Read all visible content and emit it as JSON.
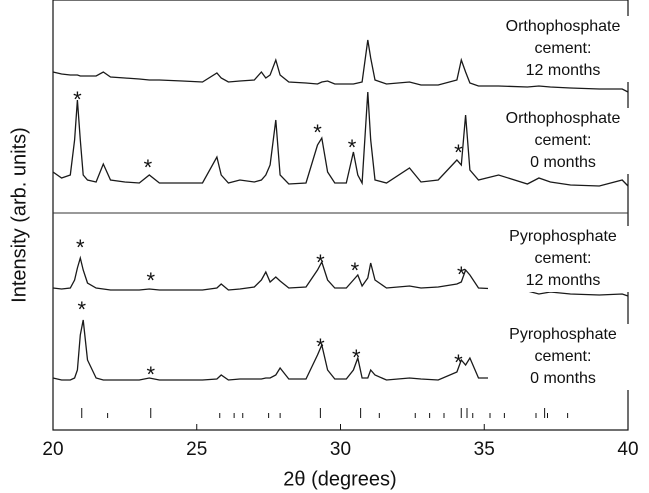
{
  "chart_data": {
    "type": "line",
    "xlabel": "2θ (degrees)",
    "ylabel": "Intensity (arb. units)",
    "xlim": [
      20,
      40
    ],
    "xticks": [
      20,
      25,
      30,
      35,
      40
    ],
    "ylim": [
      0,
      4.3
    ],
    "x": [
      20,
      20.3,
      20.6,
      20.75,
      20.85,
      20.95,
      21.05,
      21.2,
      21.5,
      21.75,
      22,
      22.5,
      23,
      23.35,
      23.7,
      24.5,
      25.2,
      25.7,
      25.85,
      26.1,
      26.5,
      27,
      27.25,
      27.4,
      27.55,
      27.75,
      27.9,
      28.2,
      28.8,
      29.2,
      29.35,
      29.55,
      29.8,
      30.2,
      30.45,
      30.6,
      30.75,
      30.95,
      31.05,
      31.2,
      31.6,
      32.4,
      32.8,
      33.4,
      34.05,
      34.2,
      34.35,
      34.5,
      34.8,
      35.5,
      36.5,
      36.9,
      37.3,
      38,
      39,
      39.8,
      40
    ],
    "series": [
      {
        "name": "Orthophosphate\ncement:\n12 months",
        "color": "#1a1a1a",
        "values": [
          3.58,
          3.56,
          3.55,
          3.55,
          3.55,
          3.54,
          3.54,
          3.54,
          3.54,
          3.58,
          3.53,
          3.52,
          3.51,
          3.5,
          3.5,
          3.49,
          3.48,
          3.57,
          3.52,
          3.48,
          3.49,
          3.5,
          3.58,
          3.52,
          3.55,
          3.7,
          3.55,
          3.48,
          3.47,
          3.46,
          3.48,
          3.49,
          3.46,
          3.46,
          3.46,
          3.47,
          3.48,
          3.9,
          3.72,
          3.5,
          3.46,
          3.48,
          3.45,
          3.45,
          3.5,
          3.7,
          3.58,
          3.47,
          3.44,
          3.44,
          3.43,
          3.44,
          3.43,
          3.42,
          3.41,
          3.41,
          3.38
        ]
      },
      {
        "name": "Orthophosphate\ncement:\n0 months",
        "color": "#1a1a1a",
        "values": [
          2.58,
          2.52,
          2.55,
          2.9,
          3.3,
          2.9,
          2.55,
          2.5,
          2.48,
          2.66,
          2.5,
          2.48,
          2.47,
          2.55,
          2.47,
          2.47,
          2.47,
          2.73,
          2.55,
          2.47,
          2.5,
          2.48,
          2.5,
          2.55,
          2.65,
          3.1,
          2.55,
          2.46,
          2.47,
          2.85,
          2.92,
          2.58,
          2.47,
          2.47,
          2.78,
          2.55,
          2.47,
          3.38,
          2.9,
          2.5,
          2.47,
          2.62,
          2.48,
          2.5,
          2.7,
          2.65,
          3.15,
          2.6,
          2.5,
          2.55,
          2.46,
          2.52,
          2.48,
          2.45,
          2.44,
          2.5,
          2.44
        ]
      },
      {
        "name": "Pyrophosphate\ncement:\n12 months",
        "color": "#1a1a1a",
        "values": [
          1.42,
          1.41,
          1.42,
          1.5,
          1.62,
          1.72,
          1.6,
          1.47,
          1.42,
          1.41,
          1.4,
          1.4,
          1.4,
          1.41,
          1.4,
          1.4,
          1.4,
          1.42,
          1.46,
          1.4,
          1.41,
          1.43,
          1.5,
          1.58,
          1.48,
          1.53,
          1.49,
          1.42,
          1.43,
          1.6,
          1.68,
          1.5,
          1.42,
          1.42,
          1.5,
          1.55,
          1.44,
          1.52,
          1.67,
          1.5,
          1.42,
          1.44,
          1.42,
          1.43,
          1.46,
          1.48,
          1.6,
          1.55,
          1.42,
          1.41,
          1.39,
          1.36,
          1.38,
          1.36,
          1.35,
          1.36,
          1.34
        ]
      },
      {
        "name": "Pyrophosphate\ncement:\n0 months",
        "color": "#1a1a1a",
        "values": [
          0.52,
          0.5,
          0.5,
          0.52,
          0.6,
          0.95,
          1.1,
          0.7,
          0.52,
          0.5,
          0.5,
          0.5,
          0.5,
          0.52,
          0.5,
          0.5,
          0.5,
          0.51,
          0.55,
          0.5,
          0.51,
          0.51,
          0.51,
          0.52,
          0.52,
          0.55,
          0.62,
          0.51,
          0.51,
          0.75,
          0.85,
          0.6,
          0.51,
          0.51,
          0.6,
          0.72,
          0.52,
          0.52,
          0.6,
          0.55,
          0.5,
          0.52,
          0.51,
          0.5,
          0.58,
          0.7,
          0.65,
          0.72,
          0.52,
          0.52,
          0.5,
          0.55,
          0.53,
          0.48,
          0.48,
          0.5,
          0.5
        ]
      }
    ],
    "reference_peaks": {
      "x": [
        21.0,
        21.9,
        23.4,
        25.8,
        26.3,
        26.6,
        27.5,
        27.9,
        29.3,
        30.7,
        31.35,
        32.6,
        33.1,
        33.6,
        34.2,
        34.4,
        34.6,
        35.2,
        35.7,
        36.8,
        37.1,
        37.2,
        37.9
      ],
      "values": [
        0.1,
        0.05,
        0.1,
        0.05,
        0.05,
        0.05,
        0.05,
        0.05,
        0.1,
        0.1,
        0.05,
        0.05,
        0.05,
        0.05,
        0.1,
        0.1,
        0.05,
        0.05,
        0.05,
        0.05,
        0.1,
        0.05,
        0.05
      ]
    },
    "annotations": [
      {
        "text": "*",
        "x": 20.85,
        "y": 3.35
      },
      {
        "text": "*",
        "x": 23.3,
        "y": 2.67
      },
      {
        "text": "*",
        "x": 29.2,
        "y": 3.02
      },
      {
        "text": "*",
        "x": 30.4,
        "y": 2.87
      },
      {
        "text": "*",
        "x": 34.1,
        "y": 2.82
      },
      {
        "text": "*",
        "x": 20.95,
        "y": 1.87
      },
      {
        "text": "*",
        "x": 23.4,
        "y": 1.54
      },
      {
        "text": "*",
        "x": 29.3,
        "y": 1.72
      },
      {
        "text": "*",
        "x": 30.5,
        "y": 1.64
      },
      {
        "text": "*",
        "x": 34.2,
        "y": 1.6
      },
      {
        "text": "*",
        "x": 21.0,
        "y": 1.25
      },
      {
        "text": "*",
        "x": 23.4,
        "y": 0.6
      },
      {
        "text": "*",
        "x": 29.3,
        "y": 0.88
      },
      {
        "text": "*",
        "x": 30.55,
        "y": 0.77
      },
      {
        "text": "*",
        "x": 34.1,
        "y": 0.72
      }
    ]
  }
}
